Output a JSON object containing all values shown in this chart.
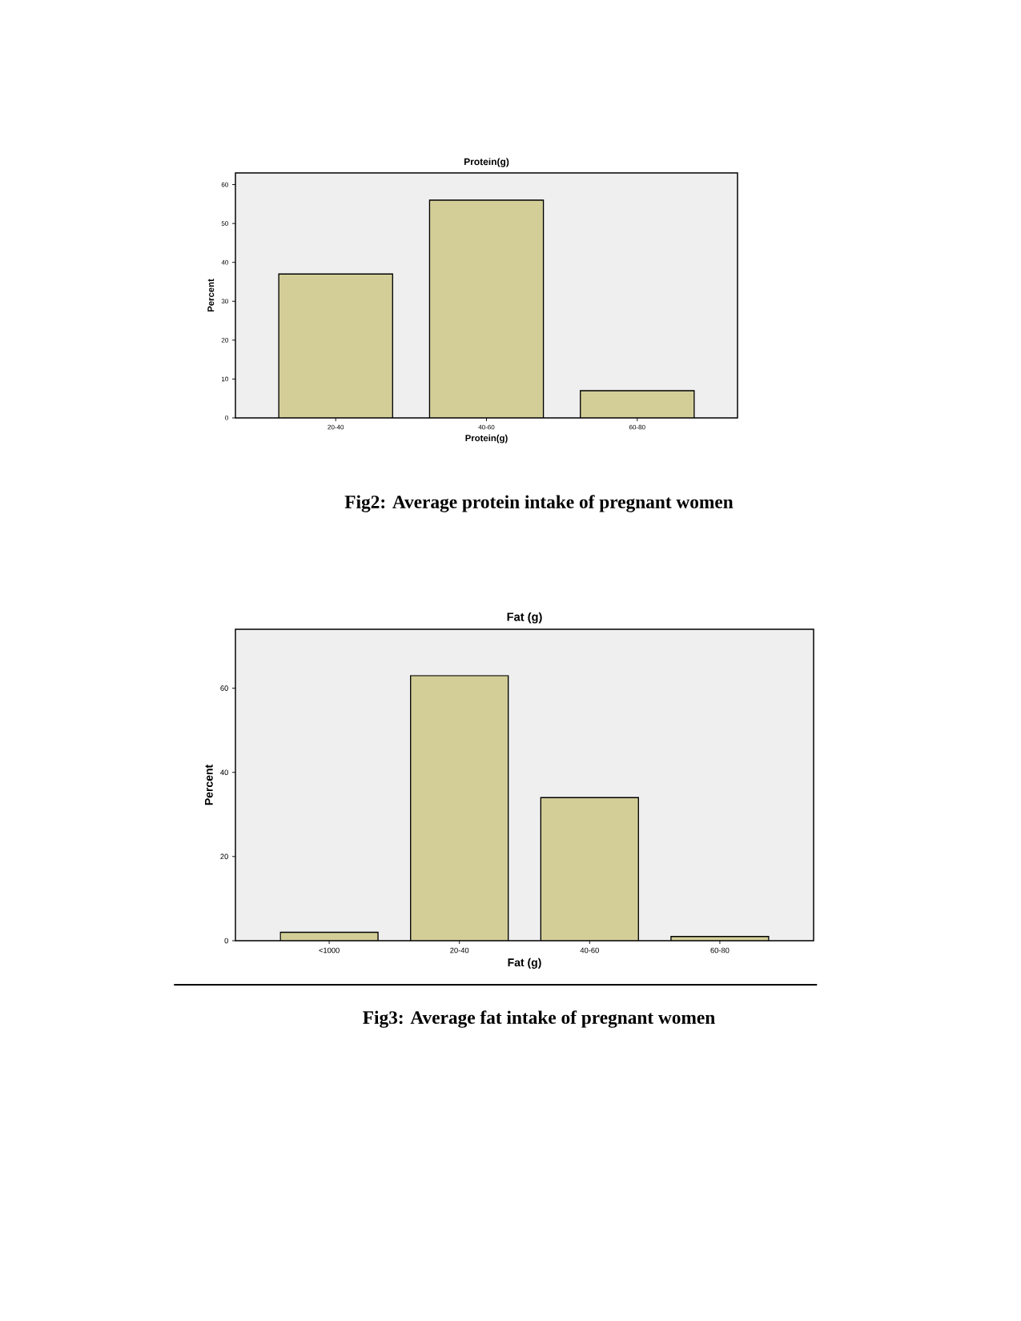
{
  "chart_data": [
    {
      "type": "bar",
      "title": "Protein(g)",
      "xlabel": "Protein(g)",
      "ylabel": "Percent",
      "categories": [
        "20-40",
        "40-60",
        "60-80"
      ],
      "values": [
        37,
        56,
        7
      ],
      "color": "#d3ce98",
      "ylim": [
        0,
        63
      ],
      "yticks": [
        0,
        10,
        20,
        30,
        40,
        50,
        60
      ],
      "annotations": [
        "Fig2: Average protein intake of pregnant women"
      ]
    },
    {
      "type": "bar",
      "title": "Fat (g)",
      "xlabel": "Fat (g)",
      "ylabel": "Percent",
      "categories": [
        "<1000",
        "20-40",
        "40-60",
        "60-80"
      ],
      "values": [
        2,
        63,
        34,
        1
      ],
      "color": "#d3ce98",
      "ylim": [
        0,
        74
      ],
      "yticks": [
        0,
        20,
        40,
        60
      ],
      "annotations": [
        "Fig3: Average fat intake of pregnant women"
      ]
    }
  ]
}
